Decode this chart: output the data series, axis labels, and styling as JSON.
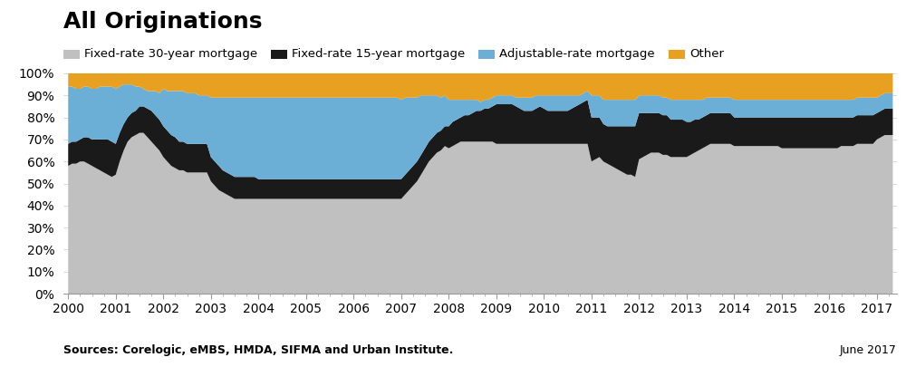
{
  "title": "All Originations",
  "legend_labels": [
    "Fixed-rate 30-year mortgage",
    "Fixed-rate 15-year mortgage",
    "Adjustable-rate mortgage",
    "Other"
  ],
  "colors": [
    "#c0c0c0",
    "#1a1a1a",
    "#6baed6",
    "#e8a020"
  ],
  "source_text": "Sources: Corelogic, eMBS, HMDA, SIFMA and Urban Institute.",
  "date_text": "June 2017",
  "years": [
    2000.0,
    2000.083,
    2000.167,
    2000.25,
    2000.333,
    2000.417,
    2000.5,
    2000.583,
    2000.667,
    2000.75,
    2000.833,
    2000.917,
    2001.0,
    2001.083,
    2001.167,
    2001.25,
    2001.333,
    2001.417,
    2001.5,
    2001.583,
    2001.667,
    2001.75,
    2001.833,
    2001.917,
    2002.0,
    2002.083,
    2002.167,
    2002.25,
    2002.333,
    2002.417,
    2002.5,
    2002.583,
    2002.667,
    2002.75,
    2002.833,
    2002.917,
    2003.0,
    2003.083,
    2003.167,
    2003.25,
    2003.333,
    2003.417,
    2003.5,
    2003.583,
    2003.667,
    2003.75,
    2003.833,
    2003.917,
    2004.0,
    2004.083,
    2004.167,
    2004.25,
    2004.333,
    2004.417,
    2004.5,
    2004.583,
    2004.667,
    2004.75,
    2004.833,
    2004.917,
    2005.0,
    2005.083,
    2005.167,
    2005.25,
    2005.333,
    2005.417,
    2005.5,
    2005.583,
    2005.667,
    2005.75,
    2005.833,
    2005.917,
    2006.0,
    2006.083,
    2006.167,
    2006.25,
    2006.333,
    2006.417,
    2006.5,
    2006.583,
    2006.667,
    2006.75,
    2006.833,
    2006.917,
    2007.0,
    2007.083,
    2007.167,
    2007.25,
    2007.333,
    2007.417,
    2007.5,
    2007.583,
    2007.667,
    2007.75,
    2007.833,
    2007.917,
    2008.0,
    2008.083,
    2008.167,
    2008.25,
    2008.333,
    2008.417,
    2008.5,
    2008.583,
    2008.667,
    2008.75,
    2008.833,
    2008.917,
    2009.0,
    2009.083,
    2009.167,
    2009.25,
    2009.333,
    2009.417,
    2009.5,
    2009.583,
    2009.667,
    2009.75,
    2009.833,
    2009.917,
    2010.0,
    2010.083,
    2010.167,
    2010.25,
    2010.333,
    2010.417,
    2010.5,
    2010.583,
    2010.667,
    2010.75,
    2010.833,
    2010.917,
    2011.0,
    2011.083,
    2011.167,
    2011.25,
    2011.333,
    2011.417,
    2011.5,
    2011.583,
    2011.667,
    2011.75,
    2011.833,
    2011.917,
    2012.0,
    2012.083,
    2012.167,
    2012.25,
    2012.333,
    2012.417,
    2012.5,
    2012.583,
    2012.667,
    2012.75,
    2012.833,
    2012.917,
    2013.0,
    2013.083,
    2013.167,
    2013.25,
    2013.333,
    2013.417,
    2013.5,
    2013.583,
    2013.667,
    2013.75,
    2013.833,
    2013.917,
    2014.0,
    2014.083,
    2014.167,
    2014.25,
    2014.333,
    2014.417,
    2014.5,
    2014.583,
    2014.667,
    2014.75,
    2014.833,
    2014.917,
    2015.0,
    2015.083,
    2015.167,
    2015.25,
    2015.333,
    2015.417,
    2015.5,
    2015.583,
    2015.667,
    2015.75,
    2015.833,
    2015.917,
    2016.0,
    2016.083,
    2016.167,
    2016.25,
    2016.333,
    2016.417,
    2016.5,
    2016.583,
    2016.667,
    2016.75,
    2016.833,
    2016.917,
    2017.0,
    2017.083,
    2017.167,
    2017.25,
    2017.333
  ],
  "fixed30": [
    0.58,
    0.59,
    0.59,
    0.6,
    0.6,
    0.59,
    0.58,
    0.57,
    0.56,
    0.55,
    0.54,
    0.53,
    0.54,
    0.6,
    0.65,
    0.69,
    0.71,
    0.72,
    0.73,
    0.73,
    0.71,
    0.69,
    0.67,
    0.65,
    0.62,
    0.6,
    0.58,
    0.57,
    0.56,
    0.56,
    0.55,
    0.55,
    0.55,
    0.55,
    0.55,
    0.55,
    0.51,
    0.49,
    0.47,
    0.46,
    0.45,
    0.44,
    0.43,
    0.43,
    0.43,
    0.43,
    0.43,
    0.43,
    0.43,
    0.43,
    0.43,
    0.43,
    0.43,
    0.43,
    0.43,
    0.43,
    0.43,
    0.43,
    0.43,
    0.43,
    0.43,
    0.43,
    0.43,
    0.43,
    0.43,
    0.43,
    0.43,
    0.43,
    0.43,
    0.43,
    0.43,
    0.43,
    0.43,
    0.43,
    0.43,
    0.43,
    0.43,
    0.43,
    0.43,
    0.43,
    0.43,
    0.43,
    0.43,
    0.43,
    0.43,
    0.45,
    0.47,
    0.49,
    0.51,
    0.54,
    0.57,
    0.6,
    0.62,
    0.64,
    0.65,
    0.67,
    0.66,
    0.67,
    0.68,
    0.69,
    0.69,
    0.69,
    0.69,
    0.69,
    0.69,
    0.69,
    0.69,
    0.69,
    0.68,
    0.68,
    0.68,
    0.68,
    0.68,
    0.68,
    0.68,
    0.68,
    0.68,
    0.68,
    0.68,
    0.68,
    0.68,
    0.68,
    0.68,
    0.68,
    0.68,
    0.68,
    0.68,
    0.68,
    0.68,
    0.68,
    0.68,
    0.68,
    0.6,
    0.61,
    0.62,
    0.6,
    0.59,
    0.58,
    0.57,
    0.56,
    0.55,
    0.54,
    0.54,
    0.53,
    0.61,
    0.62,
    0.63,
    0.64,
    0.64,
    0.64,
    0.63,
    0.63,
    0.62,
    0.62,
    0.62,
    0.62,
    0.62,
    0.63,
    0.64,
    0.65,
    0.66,
    0.67,
    0.68,
    0.68,
    0.68,
    0.68,
    0.68,
    0.68,
    0.67,
    0.67,
    0.67,
    0.67,
    0.67,
    0.67,
    0.67,
    0.67,
    0.67,
    0.67,
    0.67,
    0.67,
    0.66,
    0.66,
    0.66,
    0.66,
    0.66,
    0.66,
    0.66,
    0.66,
    0.66,
    0.66,
    0.66,
    0.66,
    0.66,
    0.66,
    0.66,
    0.67,
    0.67,
    0.67,
    0.67,
    0.68,
    0.68,
    0.68,
    0.68,
    0.68,
    0.7,
    0.71,
    0.72,
    0.72,
    0.72
  ],
  "fixed15": [
    0.1,
    0.1,
    0.1,
    0.1,
    0.11,
    0.12,
    0.12,
    0.13,
    0.14,
    0.15,
    0.16,
    0.16,
    0.14,
    0.13,
    0.12,
    0.11,
    0.11,
    0.11,
    0.12,
    0.12,
    0.13,
    0.14,
    0.14,
    0.14,
    0.14,
    0.14,
    0.14,
    0.14,
    0.13,
    0.13,
    0.13,
    0.13,
    0.13,
    0.13,
    0.13,
    0.13,
    0.11,
    0.11,
    0.11,
    0.1,
    0.1,
    0.1,
    0.1,
    0.1,
    0.1,
    0.1,
    0.1,
    0.1,
    0.09,
    0.09,
    0.09,
    0.09,
    0.09,
    0.09,
    0.09,
    0.09,
    0.09,
    0.09,
    0.09,
    0.09,
    0.09,
    0.09,
    0.09,
    0.09,
    0.09,
    0.09,
    0.09,
    0.09,
    0.09,
    0.09,
    0.09,
    0.09,
    0.09,
    0.09,
    0.09,
    0.09,
    0.09,
    0.09,
    0.09,
    0.09,
    0.09,
    0.09,
    0.09,
    0.09,
    0.09,
    0.09,
    0.09,
    0.09,
    0.09,
    0.09,
    0.09,
    0.09,
    0.09,
    0.09,
    0.09,
    0.09,
    0.1,
    0.11,
    0.11,
    0.11,
    0.12,
    0.12,
    0.13,
    0.14,
    0.14,
    0.15,
    0.15,
    0.16,
    0.18,
    0.18,
    0.18,
    0.18,
    0.18,
    0.17,
    0.16,
    0.15,
    0.15,
    0.15,
    0.16,
    0.17,
    0.16,
    0.15,
    0.15,
    0.15,
    0.15,
    0.15,
    0.15,
    0.16,
    0.17,
    0.18,
    0.19,
    0.2,
    0.2,
    0.19,
    0.18,
    0.17,
    0.17,
    0.18,
    0.19,
    0.2,
    0.21,
    0.22,
    0.22,
    0.23,
    0.21,
    0.2,
    0.19,
    0.18,
    0.18,
    0.18,
    0.18,
    0.18,
    0.17,
    0.17,
    0.17,
    0.17,
    0.16,
    0.15,
    0.15,
    0.14,
    0.14,
    0.14,
    0.14,
    0.14,
    0.14,
    0.14,
    0.14,
    0.14,
    0.13,
    0.13,
    0.13,
    0.13,
    0.13,
    0.13,
    0.13,
    0.13,
    0.13,
    0.13,
    0.13,
    0.13,
    0.14,
    0.14,
    0.14,
    0.14,
    0.14,
    0.14,
    0.14,
    0.14,
    0.14,
    0.14,
    0.14,
    0.14,
    0.14,
    0.14,
    0.14,
    0.13,
    0.13,
    0.13,
    0.13,
    0.13,
    0.13,
    0.13,
    0.13,
    0.13,
    0.12,
    0.12,
    0.12,
    0.12,
    0.12
  ],
  "arm": [
    0.26,
    0.25,
    0.24,
    0.23,
    0.23,
    0.23,
    0.23,
    0.23,
    0.24,
    0.24,
    0.24,
    0.25,
    0.25,
    0.21,
    0.18,
    0.15,
    0.13,
    0.11,
    0.09,
    0.08,
    0.08,
    0.09,
    0.11,
    0.12,
    0.17,
    0.18,
    0.2,
    0.21,
    0.23,
    0.23,
    0.23,
    0.23,
    0.23,
    0.22,
    0.22,
    0.22,
    0.27,
    0.29,
    0.31,
    0.33,
    0.34,
    0.35,
    0.36,
    0.36,
    0.36,
    0.36,
    0.36,
    0.36,
    0.37,
    0.37,
    0.37,
    0.37,
    0.37,
    0.37,
    0.37,
    0.37,
    0.37,
    0.37,
    0.37,
    0.37,
    0.37,
    0.37,
    0.37,
    0.37,
    0.37,
    0.37,
    0.37,
    0.37,
    0.37,
    0.37,
    0.37,
    0.37,
    0.37,
    0.37,
    0.37,
    0.37,
    0.37,
    0.37,
    0.37,
    0.37,
    0.37,
    0.37,
    0.37,
    0.37,
    0.36,
    0.35,
    0.33,
    0.31,
    0.29,
    0.27,
    0.24,
    0.21,
    0.19,
    0.17,
    0.15,
    0.14,
    0.12,
    0.1,
    0.09,
    0.08,
    0.07,
    0.07,
    0.06,
    0.05,
    0.04,
    0.04,
    0.04,
    0.04,
    0.04,
    0.04,
    0.04,
    0.04,
    0.04,
    0.04,
    0.05,
    0.06,
    0.06,
    0.06,
    0.06,
    0.05,
    0.06,
    0.07,
    0.07,
    0.07,
    0.07,
    0.07,
    0.07,
    0.06,
    0.05,
    0.04,
    0.04,
    0.04,
    0.1,
    0.1,
    0.1,
    0.11,
    0.12,
    0.12,
    0.12,
    0.12,
    0.12,
    0.12,
    0.12,
    0.12,
    0.08,
    0.08,
    0.08,
    0.08,
    0.08,
    0.08,
    0.08,
    0.08,
    0.09,
    0.09,
    0.09,
    0.09,
    0.1,
    0.1,
    0.09,
    0.09,
    0.08,
    0.08,
    0.07,
    0.07,
    0.07,
    0.07,
    0.07,
    0.07,
    0.08,
    0.08,
    0.08,
    0.08,
    0.08,
    0.08,
    0.08,
    0.08,
    0.08,
    0.08,
    0.08,
    0.08,
    0.08,
    0.08,
    0.08,
    0.08,
    0.08,
    0.08,
    0.08,
    0.08,
    0.08,
    0.08,
    0.08,
    0.08,
    0.08,
    0.08,
    0.08,
    0.08,
    0.08,
    0.08,
    0.08,
    0.08,
    0.08,
    0.08,
    0.08,
    0.08,
    0.07,
    0.07,
    0.07,
    0.07,
    0.07
  ],
  "other": [
    0.06,
    0.06,
    0.07,
    0.07,
    0.06,
    0.06,
    0.07,
    0.07,
    0.06,
    0.06,
    0.06,
    0.06,
    0.07,
    0.06,
    0.05,
    0.05,
    0.05,
    0.06,
    0.06,
    0.07,
    0.08,
    0.08,
    0.08,
    0.09,
    0.07,
    0.08,
    0.08,
    0.08,
    0.08,
    0.08,
    0.09,
    0.09,
    0.09,
    0.1,
    0.1,
    0.1,
    0.11,
    0.11,
    0.11,
    0.11,
    0.11,
    0.11,
    0.11,
    0.11,
    0.11,
    0.11,
    0.11,
    0.11,
    0.11,
    0.11,
    0.11,
    0.11,
    0.11,
    0.11,
    0.11,
    0.11,
    0.11,
    0.11,
    0.11,
    0.11,
    0.11,
    0.11,
    0.11,
    0.11,
    0.11,
    0.11,
    0.11,
    0.11,
    0.11,
    0.11,
    0.11,
    0.11,
    0.11,
    0.11,
    0.11,
    0.11,
    0.11,
    0.11,
    0.11,
    0.11,
    0.11,
    0.11,
    0.11,
    0.11,
    0.12,
    0.11,
    0.11,
    0.11,
    0.11,
    0.1,
    0.1,
    0.1,
    0.1,
    0.1,
    0.11,
    0.1,
    0.12,
    0.12,
    0.12,
    0.12,
    0.12,
    0.12,
    0.12,
    0.12,
    0.13,
    0.12,
    0.12,
    0.11,
    0.1,
    0.1,
    0.1,
    0.1,
    0.1,
    0.11,
    0.11,
    0.11,
    0.11,
    0.11,
    0.1,
    0.1,
    0.1,
    0.1,
    0.1,
    0.1,
    0.1,
    0.1,
    0.1,
    0.1,
    0.1,
    0.1,
    0.09,
    0.08,
    0.1,
    0.1,
    0.1,
    0.12,
    0.12,
    0.12,
    0.12,
    0.12,
    0.12,
    0.12,
    0.12,
    0.12,
    0.1,
    0.1,
    0.1,
    0.1,
    0.1,
    0.1,
    0.11,
    0.11,
    0.12,
    0.12,
    0.12,
    0.12,
    0.12,
    0.12,
    0.12,
    0.12,
    0.12,
    0.11,
    0.11,
    0.11,
    0.11,
    0.11,
    0.11,
    0.11,
    0.12,
    0.12,
    0.12,
    0.12,
    0.12,
    0.12,
    0.12,
    0.12,
    0.12,
    0.12,
    0.12,
    0.12,
    0.12,
    0.12,
    0.12,
    0.12,
    0.12,
    0.12,
    0.12,
    0.12,
    0.12,
    0.12,
    0.12,
    0.12,
    0.12,
    0.12,
    0.12,
    0.12,
    0.12,
    0.12,
    0.12,
    0.11,
    0.11,
    0.11,
    0.11,
    0.11,
    0.11,
    0.1,
    0.09,
    0.09,
    0.09
  ],
  "ytick_labels": [
    "0%",
    "10%",
    "20%",
    "30%",
    "40%",
    "50%",
    "60%",
    "70%",
    "80%",
    "90%",
    "100%"
  ],
  "ytick_values": [
    0.0,
    0.1,
    0.2,
    0.3,
    0.4,
    0.5,
    0.6,
    0.7,
    0.8,
    0.9,
    1.0
  ],
  "xtick_years": [
    2000,
    2001,
    2002,
    2003,
    2004,
    2005,
    2006,
    2007,
    2008,
    2009,
    2010,
    2011,
    2012,
    2013,
    2014,
    2015,
    2016,
    2017
  ],
  "xlim": [
    1999.9,
    2017.42
  ],
  "ylim": [
    0.0,
    1.0
  ],
  "background_color": "#ffffff",
  "title_fontsize": 18,
  "legend_fontsize": 9.5,
  "tick_fontsize": 10,
  "source_fontsize": 9
}
